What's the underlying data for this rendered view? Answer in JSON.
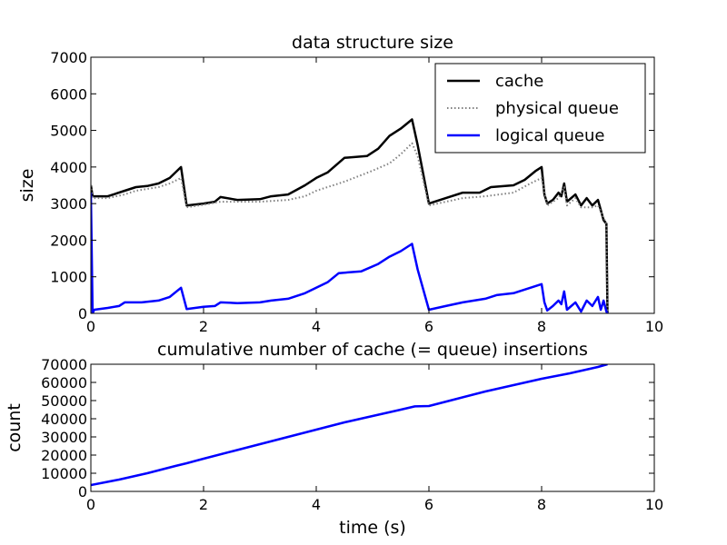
{
  "chart_data": [
    {
      "type": "line",
      "title": "data structure size",
      "xlabel": "",
      "ylabel": "size",
      "xlim": [
        0,
        10
      ],
      "ylim": [
        0,
        7000
      ],
      "xticks": [
        "0",
        "2",
        "4",
        "6",
        "8",
        "10"
      ],
      "yticks": [
        "0",
        "1000",
        "2000",
        "3000",
        "4000",
        "5000",
        "6000",
        "7000"
      ],
      "grid": false,
      "legend": "top-right",
      "series": [
        {
          "name": "cache",
          "style": "solid",
          "color": "#000000",
          "points": [
            [
              0.0,
              3500
            ],
            [
              0.03,
              3200
            ],
            [
              0.3,
              3200
            ],
            [
              0.6,
              3350
            ],
            [
              0.8,
              3450
            ],
            [
              1.0,
              3480
            ],
            [
              1.2,
              3550
            ],
            [
              1.4,
              3700
            ],
            [
              1.6,
              4000
            ],
            [
              1.7,
              2950
            ],
            [
              2.0,
              3000
            ],
            [
              2.2,
              3050
            ],
            [
              2.3,
              3180
            ],
            [
              2.6,
              3100
            ],
            [
              3.0,
              3120
            ],
            [
              3.2,
              3200
            ],
            [
              3.5,
              3250
            ],
            [
              3.8,
              3500
            ],
            [
              4.0,
              3700
            ],
            [
              4.2,
              3850
            ],
            [
              4.5,
              4250
            ],
            [
              4.9,
              4300
            ],
            [
              5.1,
              4500
            ],
            [
              5.3,
              4850
            ],
            [
              5.5,
              5050
            ],
            [
              5.7,
              5300
            ],
            [
              5.8,
              4600
            ],
            [
              6.0,
              3000
            ],
            [
              6.3,
              3150
            ],
            [
              6.6,
              3300
            ],
            [
              6.9,
              3300
            ],
            [
              7.1,
              3450
            ],
            [
              7.5,
              3500
            ],
            [
              7.7,
              3650
            ],
            [
              7.9,
              3900
            ],
            [
              8.0,
              4000
            ],
            [
              8.05,
              3250
            ],
            [
              8.1,
              3000
            ],
            [
              8.2,
              3100
            ],
            [
              8.3,
              3300
            ],
            [
              8.35,
              3200
            ],
            [
              8.4,
              3550
            ],
            [
              8.45,
              3050
            ],
            [
              8.6,
              3250
            ],
            [
              8.7,
              2950
            ],
            [
              8.8,
              3150
            ],
            [
              8.9,
              2950
            ],
            [
              9.0,
              3100
            ],
            [
              9.1,
              2550
            ],
            [
              9.15,
              2450
            ],
            [
              9.17,
              0
            ]
          ]
        },
        {
          "name": "physical queue",
          "style": "dotted",
          "color": "#808080",
          "points": [
            [
              0.0,
              3500
            ],
            [
              0.03,
              3150
            ],
            [
              0.3,
              3150
            ],
            [
              0.6,
              3250
            ],
            [
              0.8,
              3350
            ],
            [
              1.0,
              3400
            ],
            [
              1.2,
              3450
            ],
            [
              1.4,
              3550
            ],
            [
              1.6,
              3700
            ],
            [
              1.7,
              2900
            ],
            [
              2.0,
              2970
            ],
            [
              2.3,
              3050
            ],
            [
              2.6,
              3050
            ],
            [
              3.0,
              3050
            ],
            [
              3.5,
              3100
            ],
            [
              3.8,
              3200
            ],
            [
              4.0,
              3350
            ],
            [
              4.5,
              3600
            ],
            [
              5.0,
              3900
            ],
            [
              5.3,
              4100
            ],
            [
              5.5,
              4350
            ],
            [
              5.7,
              4650
            ],
            [
              5.8,
              4300
            ],
            [
              6.0,
              2950
            ],
            [
              6.3,
              3050
            ],
            [
              6.6,
              3150
            ],
            [
              7.0,
              3200
            ],
            [
              7.5,
              3300
            ],
            [
              7.8,
              3550
            ],
            [
              8.0,
              3700
            ],
            [
              8.1,
              2950
            ],
            [
              8.3,
              3150
            ],
            [
              8.4,
              3450
            ],
            [
              8.45,
              2950
            ],
            [
              8.6,
              3150
            ],
            [
              8.7,
              2900
            ],
            [
              8.9,
              2900
            ],
            [
              9.0,
              2950
            ],
            [
              9.15,
              2450
            ],
            [
              9.17,
              0
            ]
          ]
        },
        {
          "name": "logical queue",
          "style": "solid",
          "color": "#0000ff",
          "points": [
            [
              0.0,
              3300
            ],
            [
              0.03,
              0
            ],
            [
              0.06,
              100
            ],
            [
              0.3,
              150
            ],
            [
              0.5,
              200
            ],
            [
              0.6,
              300
            ],
            [
              0.9,
              300
            ],
            [
              1.2,
              350
            ],
            [
              1.4,
              450
            ],
            [
              1.6,
              700
            ],
            [
              1.7,
              120
            ],
            [
              2.0,
              180
            ],
            [
              2.2,
              200
            ],
            [
              2.3,
              300
            ],
            [
              2.6,
              280
            ],
            [
              3.0,
              300
            ],
            [
              3.2,
              350
            ],
            [
              3.5,
              400
            ],
            [
              3.8,
              550
            ],
            [
              4.0,
              700
            ],
            [
              4.2,
              850
            ],
            [
              4.4,
              1100
            ],
            [
              4.8,
              1150
            ],
            [
              5.1,
              1350
            ],
            [
              5.3,
              1550
            ],
            [
              5.5,
              1700
            ],
            [
              5.7,
              1900
            ],
            [
              5.8,
              1200
            ],
            [
              6.0,
              100
            ],
            [
              6.3,
              200
            ],
            [
              6.6,
              300
            ],
            [
              7.0,
              400
            ],
            [
              7.2,
              500
            ],
            [
              7.5,
              550
            ],
            [
              7.7,
              650
            ],
            [
              8.0,
              800
            ],
            [
              8.05,
              300
            ],
            [
              8.1,
              80
            ],
            [
              8.2,
              200
            ],
            [
              8.3,
              350
            ],
            [
              8.35,
              250
            ],
            [
              8.4,
              600
            ],
            [
              8.45,
              100
            ],
            [
              8.6,
              300
            ],
            [
              8.7,
              50
            ],
            [
              8.8,
              350
            ],
            [
              8.9,
              200
            ],
            [
              9.0,
              450
            ],
            [
              9.05,
              100
            ],
            [
              9.1,
              350
            ],
            [
              9.15,
              50
            ],
            [
              9.17,
              0
            ]
          ]
        }
      ]
    },
    {
      "type": "line",
      "title": "cumulative number of cache (= queue) insertions",
      "xlabel": "time (s)",
      "ylabel": "count",
      "xlim": [
        0,
        10
      ],
      "ylim": [
        0,
        70000
      ],
      "xticks": [
        "0",
        "2",
        "4",
        "6",
        "8",
        "10"
      ],
      "yticks": [
        "0",
        "10000",
        "20000",
        "30000",
        "40000",
        "50000",
        "60000",
        "70000"
      ],
      "grid": false,
      "series": [
        {
          "style": "solid",
          "color": "#0000ff",
          "points": [
            [
              0.0,
              3500
            ],
            [
              0.5,
              6500
            ],
            [
              1.0,
              10000
            ],
            [
              1.5,
              14000
            ],
            [
              1.7,
              15500
            ],
            [
              2.0,
              18000
            ],
            [
              2.5,
              22000
            ],
            [
              3.0,
              26000
            ],
            [
              3.5,
              30000
            ],
            [
              4.0,
              34000
            ],
            [
              4.5,
              38000
            ],
            [
              5.0,
              41500
            ],
            [
              5.5,
              45000
            ],
            [
              5.75,
              46800
            ],
            [
              6.0,
              47000
            ],
            [
              6.5,
              51000
            ],
            [
              7.0,
              55000
            ],
            [
              7.5,
              58500
            ],
            [
              8.0,
              62000
            ],
            [
              8.5,
              65000
            ],
            [
              9.0,
              68500
            ],
            [
              9.17,
              70000
            ]
          ]
        }
      ]
    }
  ]
}
